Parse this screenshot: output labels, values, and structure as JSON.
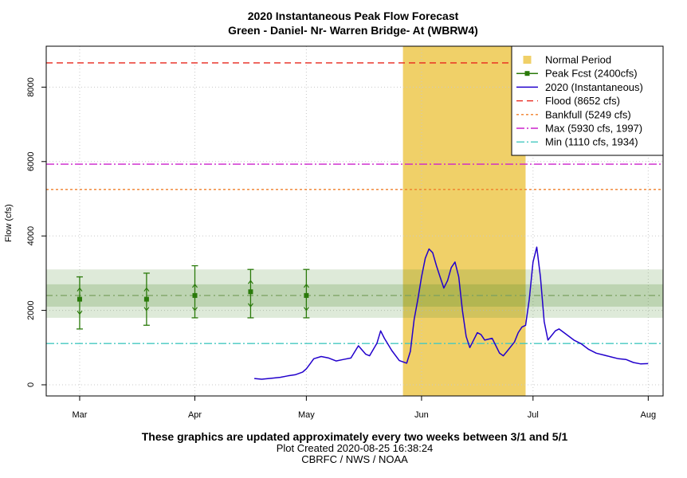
{
  "chart_data": {
    "type": "line",
    "title": "2020 Instantaneous Peak Flow Forecast",
    "subtitle": "Green - Daniel- Nr- Warren Bridge- At (WBRW4)",
    "ylabel": "Flow (cfs)",
    "xlabel": "",
    "xlim": [
      "2020-02-21",
      "2020-08-05"
    ],
    "ylim": [
      -300,
      9100
    ],
    "x_ticks": [
      {
        "date": "2020-03-01",
        "label": "Mar"
      },
      {
        "date": "2020-04-01",
        "label": "Apr"
      },
      {
        "date": "2020-05-01",
        "label": "May"
      },
      {
        "date": "2020-06-01",
        "label": "Jun"
      },
      {
        "date": "2020-07-01",
        "label": "Jul"
      },
      {
        "date": "2020-08-01",
        "label": "Aug"
      }
    ],
    "y_ticks": [
      0,
      2000,
      4000,
      6000,
      8000
    ],
    "grid": true,
    "legend_position": "top-right",
    "normal_period": {
      "start": "2020-05-27",
      "end": "2020-06-29",
      "color": "#f0d068"
    },
    "forecast_bands": {
      "outer": [
        1800,
        3100
      ],
      "inner": [
        2100,
        2700
      ],
      "median": 2400
    },
    "reference_lines": [
      {
        "name": "Flood (8652 cfs)",
        "value": 8652,
        "color": "#e8261c",
        "dash": "8,5"
      },
      {
        "name": "Bankfull (5249 cfs)",
        "value": 5249,
        "color": "#f07f2a",
        "dash": "3,3"
      },
      {
        "name": "Max (5930 cfs, 1997)",
        "value": 5930,
        "color": "#cc22cc",
        "dash": "10,3,2,3"
      },
      {
        "name": "Min (1110 cfs, 1934)",
        "value": 1110,
        "color": "#44c8c0",
        "dash": "10,3,2,3"
      }
    ],
    "peak_forecasts": [
      {
        "date": "2020-03-01",
        "value": 2300,
        "low": 1500,
        "high": 2900,
        "mid_low": 1900,
        "mid_high": 2600
      },
      {
        "date": "2020-03-19",
        "value": 2300,
        "low": 1600,
        "high": 3000,
        "mid_low": 2000,
        "mid_high": 2600
      },
      {
        "date": "2020-04-01",
        "value": 2400,
        "low": 1800,
        "high": 3200,
        "mid_low": 2000,
        "mid_high": 2700
      },
      {
        "date": "2020-04-16",
        "value": 2500,
        "low": 1800,
        "high": 3100,
        "mid_low": 2100,
        "mid_high": 2800
      },
      {
        "date": "2020-05-01",
        "value": 2400,
        "low": 1800,
        "high": 3100,
        "mid_low": 2000,
        "mid_high": 2700
      }
    ],
    "series": [
      {
        "name": "2020  (Instantaneous)",
        "color": "#2200cc",
        "points": [
          [
            "2020-04-17",
            170
          ],
          [
            "2020-04-19",
            150
          ],
          [
            "2020-04-22",
            180
          ],
          [
            "2020-04-24",
            200
          ],
          [
            "2020-04-26",
            240
          ],
          [
            "2020-04-28",
            270
          ],
          [
            "2020-04-30",
            340
          ],
          [
            "2020-05-01",
            430
          ],
          [
            "2020-05-02",
            560
          ],
          [
            "2020-05-03",
            700
          ],
          [
            "2020-05-05",
            760
          ],
          [
            "2020-05-07",
            720
          ],
          [
            "2020-05-09",
            640
          ],
          [
            "2020-05-11",
            680
          ],
          [
            "2020-05-13",
            720
          ],
          [
            "2020-05-15",
            1050
          ],
          [
            "2020-05-17",
            820
          ],
          [
            "2020-05-18",
            780
          ],
          [
            "2020-05-20",
            1120
          ],
          [
            "2020-05-21",
            1450
          ],
          [
            "2020-05-22",
            1250
          ],
          [
            "2020-05-24",
            920
          ],
          [
            "2020-05-26",
            650
          ],
          [
            "2020-05-28",
            580
          ],
          [
            "2020-05-29",
            900
          ],
          [
            "2020-05-30",
            1750
          ],
          [
            "2020-05-31",
            2300
          ],
          [
            "2020-06-01",
            2900
          ],
          [
            "2020-06-02",
            3400
          ],
          [
            "2020-06-03",
            3650
          ],
          [
            "2020-06-04",
            3550
          ],
          [
            "2020-06-05",
            3200
          ],
          [
            "2020-06-06",
            2900
          ],
          [
            "2020-06-07",
            2600
          ],
          [
            "2020-06-08",
            2800
          ],
          [
            "2020-06-09",
            3150
          ],
          [
            "2020-06-10",
            3300
          ],
          [
            "2020-06-11",
            2900
          ],
          [
            "2020-06-12",
            2000
          ],
          [
            "2020-06-13",
            1300
          ],
          [
            "2020-06-14",
            1000
          ],
          [
            "2020-06-15",
            1200
          ],
          [
            "2020-06-16",
            1400
          ],
          [
            "2020-06-17",
            1350
          ],
          [
            "2020-06-18",
            1200
          ],
          [
            "2020-06-20",
            1250
          ],
          [
            "2020-06-21",
            1050
          ],
          [
            "2020-06-22",
            850
          ],
          [
            "2020-06-23",
            780
          ],
          [
            "2020-06-24",
            900
          ],
          [
            "2020-06-26",
            1150
          ],
          [
            "2020-06-27",
            1400
          ],
          [
            "2020-06-28",
            1550
          ],
          [
            "2020-06-29",
            1600
          ],
          [
            "2020-06-30",
            2300
          ],
          [
            "2020-07-01",
            3300
          ],
          [
            "2020-07-02",
            3700
          ],
          [
            "2020-07-03",
            2900
          ],
          [
            "2020-07-04",
            1700
          ],
          [
            "2020-07-05",
            1200
          ],
          [
            "2020-07-07",
            1450
          ],
          [
            "2020-07-08",
            1500
          ],
          [
            "2020-07-10",
            1350
          ],
          [
            "2020-07-12",
            1200
          ],
          [
            "2020-07-14",
            1100
          ],
          [
            "2020-07-16",
            950
          ],
          [
            "2020-07-18",
            850
          ],
          [
            "2020-07-20",
            800
          ],
          [
            "2020-07-22",
            750
          ],
          [
            "2020-07-24",
            700
          ],
          [
            "2020-07-26",
            680
          ],
          [
            "2020-07-28",
            600
          ],
          [
            "2020-07-30",
            560
          ],
          [
            "2020-08-01",
            570
          ]
        ]
      }
    ],
    "legend": [
      {
        "label": "Normal Period",
        "kind": "square",
        "color": "#f0d068"
      },
      {
        "label": "Peak Fcst (2400cfs)",
        "kind": "line-marker",
        "color": "#2a7a0a"
      },
      {
        "label": "2020  (Instantaneous)",
        "kind": "line",
        "color": "#2200cc"
      },
      {
        "label": "Flood (8652 cfs)",
        "kind": "dash",
        "color": "#e8261c",
        "dash": "8,5"
      },
      {
        "label": "Bankfull (5249 cfs)",
        "kind": "dash",
        "color": "#f07f2a",
        "dash": "3,3"
      },
      {
        "label": "Max (5930 cfs, 1997)",
        "kind": "dash",
        "color": "#cc22cc",
        "dash": "10,3,2,3"
      },
      {
        "label": "Min (1110 cfs, 1934)",
        "kind": "dash",
        "color": "#44c8c0",
        "dash": "10,3,2,3"
      }
    ]
  },
  "footer": {
    "note": "These graphics are updated approximately every two weeks between 3/1 and 5/1",
    "created": "Plot Created 2020-08-25 16:38:24",
    "agency": "CBRFC / NWS / NOAA"
  }
}
